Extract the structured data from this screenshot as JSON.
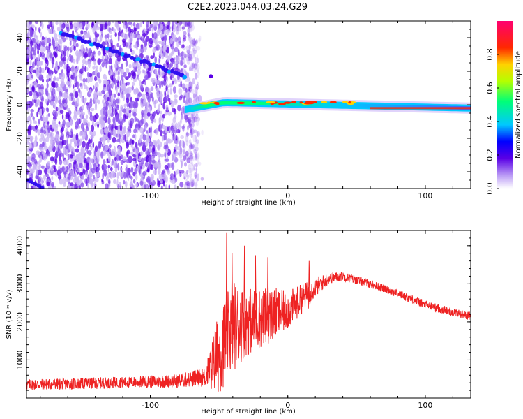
{
  "title": "C2E2.2023.044.03.24.G29",
  "colors": {
    "background_purple": "#a070e8",
    "trace_line": "#ee2222",
    "snr_line": "#ee2222",
    "colormap": [
      "#ffffff",
      "#5a00e6",
      "#0000ff",
      "#00c8ff",
      "#00ff78",
      "#b4ff00",
      "#ff2800",
      "#ff0070"
    ]
  },
  "chart_data": [
    {
      "type": "heatmap",
      "xlabel": "Height of straight line (km)",
      "ylabel": "Frequency (Hz)",
      "xlim": [
        -190,
        133
      ],
      "ylim": [
        -50,
        50
      ],
      "x_ticks": [
        "-100",
        "0",
        "100"
      ],
      "x_tick_values": [
        -100,
        0,
        100
      ],
      "y_ticks": [
        "-40",
        "-20",
        "0",
        "20",
        "40"
      ],
      "y_tick_values": [
        -40,
        -20,
        0,
        20,
        40
      ],
      "colorbar": {
        "label": "Normalized spectral amplitude",
        "ticks": [
          "0.0",
          "0.2",
          "0.4",
          "0.6",
          "0.8"
        ],
        "tick_values": [
          0.0,
          0.2,
          0.4,
          0.6,
          0.8
        ],
        "range": [
          0,
          1
        ]
      },
      "features": {
        "diagonal_trace": {
          "x": [
            -165,
            -75
          ],
          "y": [
            43,
            17
          ],
          "amplitude": 0.25
        },
        "carrier_band": {
          "x": [
            -75,
            133
          ],
          "y_start": -3,
          "y_center": 0,
          "y_end": -2,
          "amplitude_max": 0.85
        },
        "noise_region": {
          "x": [
            -190,
            -65
          ],
          "amplitude": 0.12
        }
      }
    },
    {
      "type": "line",
      "xlabel": "Height of straight line (km)",
      "ylabel": "SNR (10 * v/v)",
      "xlim": [
        -190,
        133
      ],
      "ylim": [
        0,
        4400
      ],
      "x_ticks": [
        "-100",
        "0",
        "100"
      ],
      "x_tick_values": [
        -100,
        0,
        100
      ],
      "y_ticks": [
        "1000",
        "2000",
        "3000",
        "4000"
      ],
      "y_tick_values": [
        1000,
        2000,
        3000,
        4000
      ],
      "series": [
        {
          "x": [
            -190,
            -150,
            -110,
            -80,
            -60,
            -50,
            -40,
            -30,
            -20,
            -10,
            0,
            10,
            20,
            30,
            40,
            60,
            80,
            100,
            120,
            133
          ],
          "y": [
            350,
            380,
            420,
            450,
            550,
            1200,
            1900,
            2000,
            2100,
            2200,
            2300,
            2600,
            2900,
            3150,
            3200,
            3000,
            2750,
            2450,
            2250,
            2150
          ],
          "noise": [
            150,
            150,
            150,
            180,
            250,
            1100,
            1200,
            900,
            800,
            700,
            500,
            400,
            250,
            150,
            120,
            110,
            110,
            110,
            110,
            110
          ],
          "spikes": [
            {
              "x": -45,
              "y": 4350
            },
            {
              "x": -41,
              "y": 3800
            },
            {
              "x": -32,
              "y": 4000
            },
            {
              "x": -24,
              "y": 3750
            },
            {
              "x": -15,
              "y": 3700
            },
            {
              "x": 15,
              "y": 3600
            }
          ]
        }
      ]
    }
  ]
}
